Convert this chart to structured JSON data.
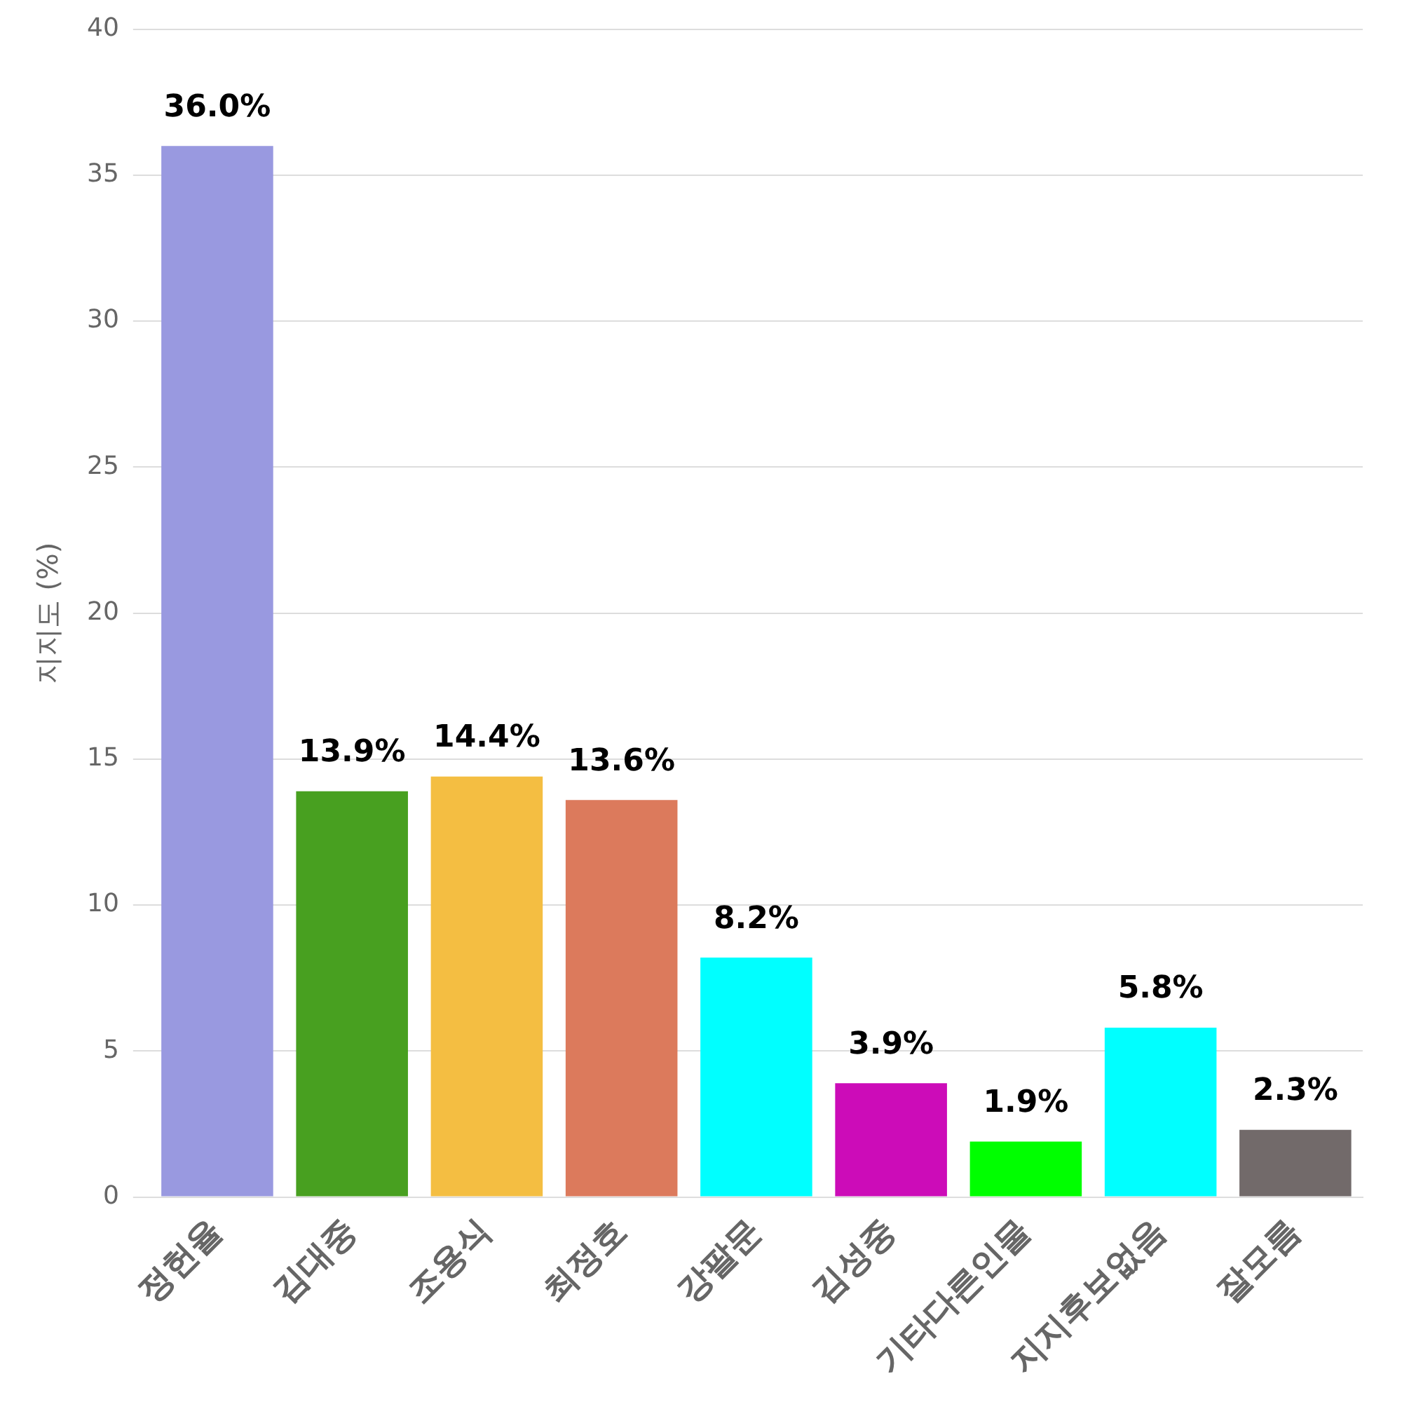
{
  "chart_data": {
    "type": "bar",
    "ylabel": "지지도 (%)",
    "categories": [
      "정헌율",
      "김대중",
      "조용식",
      "최정호",
      "강팔문",
      "김성중",
      "기타다른인물",
      "지지후보없음",
      "잘모름"
    ],
    "values": [
      36.0,
      13.9,
      14.4,
      13.6,
      8.2,
      3.9,
      1.9,
      5.8,
      2.3
    ],
    "value_labels": [
      "36.0%",
      "13.9%",
      "14.4%",
      "13.6%",
      "8.2%",
      "3.9%",
      "1.9%",
      "5.8%",
      "2.3%"
    ],
    "colors": [
      "#9999e0",
      "#48a020",
      "#f4be42",
      "#dc7a5c",
      "#00ffff",
      "#cc0cb8",
      "#00ff00",
      "#00ffff",
      "#726a6a"
    ],
    "ylim": [
      0,
      40
    ],
    "yticks": [
      0,
      5,
      10,
      15,
      20,
      25,
      30,
      35,
      40
    ],
    "grid": "y",
    "legend": false
  }
}
